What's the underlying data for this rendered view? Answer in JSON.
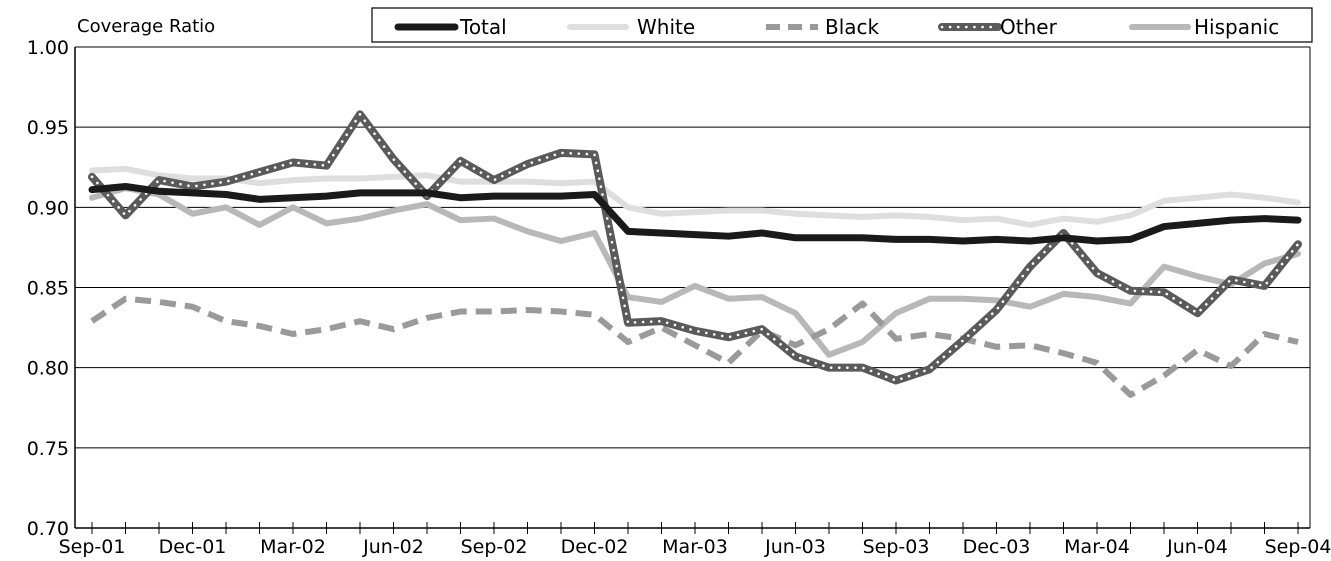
{
  "chart_data": {
    "type": "line",
    "ylabel": "Coverage Ratio",
    "xlabel": "",
    "ylim": [
      0.7,
      1.0
    ],
    "y_ticks": [
      "0.70",
      "0.75",
      "0.80",
      "0.85",
      "0.90",
      "0.95",
      "1.00"
    ],
    "y_tick_values": [
      0.7,
      0.75,
      0.8,
      0.85,
      0.9,
      0.95,
      1.0
    ],
    "x_tick_labels": [
      "Sep-01",
      "Dec-01",
      "Mar-02",
      "Jun-02",
      "Sep-02",
      "Dec-02",
      "Mar-03",
      "Jun-03",
      "Sep-03",
      "Dec-03",
      "Mar-04",
      "Jun-04",
      "Sep-04"
    ],
    "x": [
      "Sep-01",
      "Oct-01",
      "Nov-01",
      "Dec-01",
      "Jan-02",
      "Feb-02",
      "Mar-02",
      "Apr-02",
      "May-02",
      "Jun-02",
      "Jul-02",
      "Aug-02",
      "Sep-02",
      "Oct-02",
      "Nov-02",
      "Dec-02",
      "Jan-03",
      "Feb-03",
      "Mar-03",
      "Apr-03",
      "May-03",
      "Jun-03",
      "Jul-03",
      "Aug-03",
      "Sep-03",
      "Oct-03",
      "Nov-03",
      "Dec-03",
      "Jan-04",
      "Feb-04",
      "Mar-04",
      "Apr-04",
      "May-04",
      "Jun-04",
      "Jul-04",
      "Aug-04",
      "Sep-04"
    ],
    "grid": "horizontal",
    "legend_position": "top",
    "series": [
      {
        "name": "Total",
        "color": "#1a1a1a",
        "style": "solid-thick",
        "values": [
          0.911,
          0.913,
          0.91,
          0.909,
          0.908,
          0.905,
          0.906,
          0.907,
          0.909,
          0.909,
          0.909,
          0.906,
          0.907,
          0.907,
          0.907,
          0.908,
          0.885,
          0.884,
          0.883,
          0.882,
          0.884,
          0.881,
          0.881,
          0.881,
          0.88,
          0.88,
          0.879,
          0.88,
          0.879,
          0.881,
          0.879,
          0.88,
          0.888,
          0.89,
          0.892,
          0.893,
          0.892
        ]
      },
      {
        "name": "White",
        "color": "#dedede",
        "style": "solid",
        "values": [
          0.923,
          0.924,
          0.92,
          0.918,
          0.918,
          0.915,
          0.917,
          0.918,
          0.918,
          0.919,
          0.92,
          0.916,
          0.916,
          0.916,
          0.915,
          0.916,
          0.9,
          0.896,
          0.897,
          0.898,
          0.898,
          0.896,
          0.895,
          0.894,
          0.895,
          0.894,
          0.892,
          0.893,
          0.889,
          0.893,
          0.891,
          0.895,
          0.904,
          0.906,
          0.908,
          0.906,
          0.903
        ]
      },
      {
        "name": "Black",
        "color": "#9a9a9a",
        "style": "dashed",
        "values": [
          0.829,
          0.843,
          0.841,
          0.838,
          0.829,
          0.826,
          0.821,
          0.824,
          0.829,
          0.824,
          0.831,
          0.835,
          0.835,
          0.836,
          0.835,
          0.833,
          0.816,
          0.825,
          0.814,
          0.803,
          0.823,
          0.814,
          0.824,
          0.84,
          0.818,
          0.821,
          0.818,
          0.813,
          0.814,
          0.809,
          0.803,
          0.783,
          0.795,
          0.811,
          0.801,
          0.821,
          0.816
        ]
      },
      {
        "name": "Other",
        "color": "#5a5a5a",
        "style": "dotted-band",
        "values": [
          0.919,
          0.895,
          0.917,
          0.913,
          0.916,
          0.922,
          0.928,
          0.926,
          0.958,
          0.93,
          0.907,
          0.929,
          0.917,
          0.927,
          0.934,
          0.933,
          0.828,
          0.829,
          0.823,
          0.819,
          0.824,
          0.807,
          0.8,
          0.8,
          0.792,
          0.799,
          0.817,
          0.836,
          0.863,
          0.884,
          0.859,
          0.848,
          0.847,
          0.834,
          0.855,
          0.851,
          0.877
        ]
      },
      {
        "name": "Hispanic",
        "color": "#b8b8b8",
        "style": "solid",
        "values": [
          0.906,
          0.912,
          0.908,
          0.896,
          0.9,
          0.889,
          0.9,
          0.89,
          0.893,
          0.898,
          0.902,
          0.892,
          0.893,
          0.885,
          0.879,
          0.884,
          0.844,
          0.841,
          0.851,
          0.843,
          0.844,
          0.834,
          0.808,
          0.816,
          0.834,
          0.843,
          0.843,
          0.842,
          0.838,
          0.846,
          0.844,
          0.84,
          0.863,
          0.857,
          0.852,
          0.865,
          0.871
        ]
      }
    ]
  }
}
